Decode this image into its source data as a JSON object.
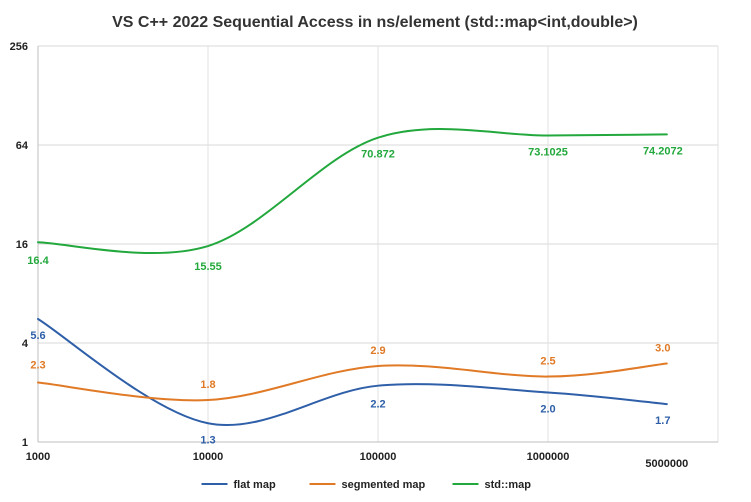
{
  "chart_data": {
    "type": "line",
    "title": "VS C++ 2022 Sequential Access in ns/element (std::map<int,double>)",
    "x": [
      1000,
      10000,
      100000,
      1000000,
      5000000
    ],
    "x_tick_labels": [
      "1000",
      "10000",
      "100000",
      "1000000",
      "5000000"
    ],
    "x_scale": "log",
    "y_scale": "log2",
    "ylim": [
      1,
      256
    ],
    "y_ticks": [
      1,
      4,
      16,
      64,
      256
    ],
    "y_tick_labels": [
      "1",
      "4",
      "16",
      "64",
      "256"
    ],
    "grid": "horizontal",
    "legend_position": "bottom",
    "series": [
      {
        "name": "flat map",
        "color": "#2e5fa8",
        "values": [
          5.6,
          1.3,
          2.2,
          2.0,
          1.7
        ],
        "labels": [
          "5.6",
          "1.3",
          "2.2",
          "2.0",
          "1.7"
        ]
      },
      {
        "name": "segmented map",
        "color": "#e07a26",
        "values": [
          2.3,
          1.8,
          2.9,
          2.5,
          3.0
        ],
        "labels": [
          "2.3",
          "1.8",
          "2.9",
          "2.5",
          "3.0"
        ]
      },
      {
        "name": "std::map",
        "color": "#22a83c",
        "values": [
          16.4,
          15.55,
          70.872,
          73.1025,
          74.2072
        ],
        "labels": [
          "16.4",
          "15.55",
          "70.872",
          "73.1025",
          "74.2072"
        ]
      }
    ]
  }
}
